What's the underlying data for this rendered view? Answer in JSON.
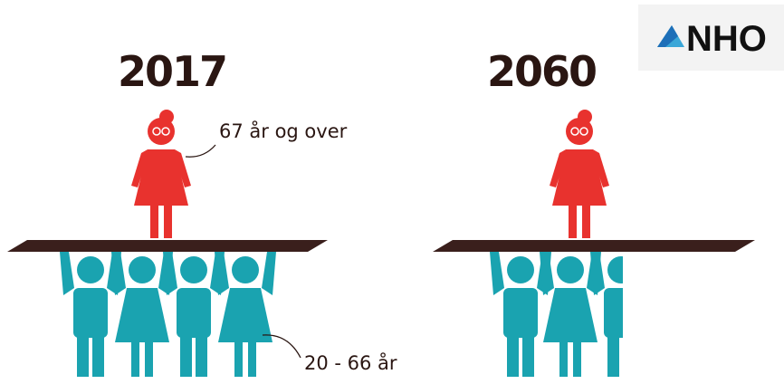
{
  "logo": {
    "text": "NHO"
  },
  "panels": [
    {
      "year": "2017",
      "elderly_label": "67 år og over",
      "workers_label": "20 - 66 år"
    },
    {
      "year": "2060"
    }
  ]
}
